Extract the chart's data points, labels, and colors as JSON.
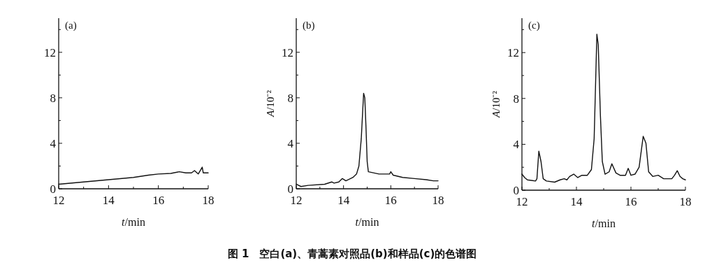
{
  "chart_data": [
    {
      "type": "line",
      "title": "(a)",
      "xlabel": "t/min",
      "xlim": [
        12,
        18
      ],
      "ylim": [
        0,
        15
      ],
      "xticks": [
        12,
        {
          "value": 13,
          "label": null
        },
        14,
        {
          "value": 15,
          "label": null
        },
        16,
        {
          "value": 17,
          "label": null
        },
        18
      ],
      "yticks": [
        0,
        {
          "value": 2,
          "label": null
        },
        4,
        {
          "value": 6,
          "label": null
        },
        8,
        {
          "value": 10,
          "label": null
        },
        12,
        {
          "value": 14,
          "label": null
        }
      ],
      "series": [
        {
          "color": "#111111",
          "x": [
            12,
            13,
            14,
            15,
            15.6,
            16,
            16.5,
            16.84,
            17.1,
            17.33,
            17.45,
            17.6,
            17.76,
            17.8,
            18
          ],
          "values": [
            0.4,
            0.6,
            0.8,
            1.0,
            1.2,
            1.3,
            1.35,
            1.5,
            1.4,
            1.4,
            1.6,
            1.3,
            1.9,
            1.4,
            1.4
          ]
        }
      ]
    },
    {
      "type": "line",
      "title": "(b)",
      "xlabel": "t/min",
      "ylabel": "A/10⁻²",
      "xlim": [
        12,
        18
      ],
      "ylim": [
        0,
        15
      ],
      "xticks": [
        12,
        {
          "value": 13,
          "label": null
        },
        14,
        {
          "value": 15,
          "label": null
        },
        16,
        {
          "value": 17,
          "label": null
        },
        18
      ],
      "yticks": [
        0,
        {
          "value": 2,
          "label": null
        },
        4,
        {
          "value": 6,
          "label": null
        },
        8,
        {
          "value": 10,
          "label": null
        },
        12,
        {
          "value": 14,
          "label": null
        }
      ],
      "annotations": [
        "图 1　空白(a)、青蒿素对照品(b)和样品(c)的色谱图"
      ],
      "series": [
        {
          "color": "#111111",
          "x": [
            12,
            12.2,
            12.5,
            13.2,
            13.5,
            13.6,
            13.8,
            13.95,
            14.1,
            14.4,
            14.55,
            14.65,
            14.75,
            14.85,
            14.9,
            14.95,
            15,
            15.05,
            15.5,
            15.95,
            16,
            16.1,
            16.5,
            17,
            17.5,
            17.8,
            18
          ],
          "values": [
            0.4,
            0.2,
            0.3,
            0.4,
            0.6,
            0.5,
            0.6,
            0.9,
            0.7,
            1.0,
            1.3,
            2.0,
            4.4,
            8.4,
            8.0,
            5.4,
            2.4,
            1.5,
            1.3,
            1.3,
            1.5,
            1.2,
            1.0,
            0.9,
            0.8,
            0.7,
            0.7
          ]
        }
      ]
    },
    {
      "type": "line",
      "title": "(c)",
      "xlabel": "t/min",
      "ylabel": "A/10⁻²",
      "xlim": [
        12,
        18
      ],
      "ylim": [
        0,
        15
      ],
      "xticks": [
        12,
        {
          "value": 13,
          "label": null
        },
        14,
        {
          "value": 15,
          "label": null
        },
        16,
        {
          "value": 17,
          "label": null
        },
        18
      ],
      "yticks": [
        0,
        {
          "value": 2,
          "label": null
        },
        4,
        {
          "value": 6,
          "label": null
        },
        8,
        {
          "value": 10,
          "label": null
        },
        12,
        {
          "value": 14,
          "label": null
        }
      ],
      "series": [
        {
          "color": "#111111",
          "x": [
            12,
            12.1,
            12.2,
            12.5,
            12.55,
            12.62,
            12.7,
            12.78,
            12.9,
            13.2,
            13.4,
            13.55,
            13.65,
            13.75,
            13.9,
            14.05,
            14.2,
            14.4,
            14.55,
            14.65,
            14.75,
            14.8,
            14.88,
            14.95,
            15.05,
            15.2,
            15.3,
            15.45,
            15.6,
            15.8,
            15.9,
            16,
            16.15,
            16.3,
            16.45,
            16.55,
            16.65,
            16.8,
            17,
            17.2,
            17.5,
            17.6,
            17.7,
            17.8,
            17.9,
            18
          ],
          "values": [
            1.4,
            1.1,
            0.9,
            0.8,
            1.0,
            3.4,
            2.5,
            1.0,
            0.8,
            0.7,
            0.9,
            1.0,
            0.9,
            1.2,
            1.4,
            1.1,
            1.3,
            1.3,
            1.8,
            4.5,
            13.6,
            12.7,
            6.5,
            2.5,
            1.4,
            1.6,
            2.3,
            1.5,
            1.3,
            1.3,
            1.9,
            1.3,
            1.4,
            2.0,
            4.7,
            4.1,
            1.6,
            1.2,
            1.3,
            1.0,
            1.0,
            1.3,
            1.7,
            1.2,
            1.0,
            0.9
          ]
        }
      ]
    }
  ]
}
